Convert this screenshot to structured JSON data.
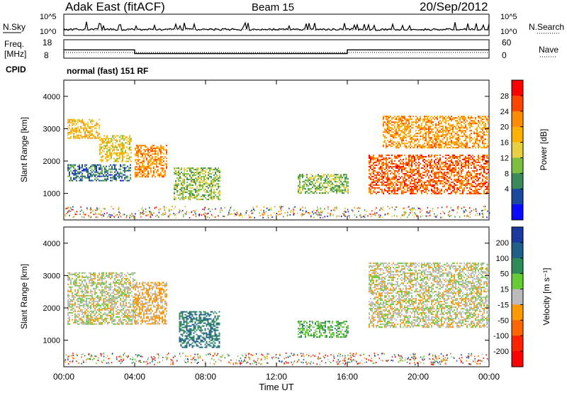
{
  "header": {
    "station": "Adak East (fitACF)",
    "beam": "Beam 15",
    "date": "20/Sep/2012"
  },
  "sky_panel": {
    "left_label": "N.Sky",
    "right_label": "N.Search",
    "ticks_left": [
      "10^5",
      "10^0"
    ],
    "ticks_right": [
      "10^5",
      "10^0"
    ]
  },
  "freq_panel": {
    "left_label_1": "Freq.",
    "left_label_2": "[MHz]",
    "right_label": "Nave",
    "ticks_left": [
      "18",
      "8"
    ],
    "ticks_right": [
      "60",
      "0"
    ]
  },
  "cpid": {
    "label": "CPID",
    "value": "normal (fast) 151 RF"
  },
  "power_panel": {
    "ylabel": "Slant Range [km]",
    "yticks": [
      "4000",
      "3000",
      "2000",
      "1000"
    ],
    "colorbar_label": "Power [dB]",
    "colorbar_ticks": [
      "28",
      "24",
      "20",
      "16",
      "12",
      "8",
      "4"
    ],
    "colorbar_colors": [
      "#ff0000",
      "#ff4400",
      "#ff8c00",
      "#ffb000",
      "#e8d040",
      "#7cc040",
      "#3a8a5a",
      "#1a4aa0",
      "#0a0aff"
    ]
  },
  "velocity_panel": {
    "ylabel": "Slant Range [km]",
    "yticks": [
      "4000",
      "3000",
      "2000",
      "1000"
    ],
    "colorbar_label": "Velocity [m s⁻¹]",
    "colorbar_ticks": [
      "200",
      "100",
      "50",
      "15",
      "-15",
      "-50",
      "-100",
      "-200"
    ],
    "colorbar_colors": [
      "#1a3aa0",
      "#1f5f8a",
      "#2e8b57",
      "#66cc33",
      "#bbbbbb",
      "#ff9900",
      "#ff6600",
      "#ff2200",
      "#ff0000"
    ]
  },
  "xaxis": {
    "label": "Time UT",
    "ticks": [
      "00:00",
      "04:00",
      "08:00",
      "12:00",
      "16:00",
      "20:00",
      "00:00"
    ]
  },
  "chart_data": {
    "type": "heatmap",
    "title": "Adak East (fitACF)  Beam 15  20/Sep/2012",
    "xlabel": "Time UT",
    "ylabel": "Slant Range [km]",
    "x_range_hours": [
      0,
      24
    ],
    "y_range_km": [
      180,
      4500
    ],
    "frequency_mhz": [
      {
        "from_hour": 0,
        "to_hour": 4,
        "value": 12.5
      },
      {
        "from_hour": 4,
        "to_hour": 16,
        "value": 10.5
      },
      {
        "from_hour": 16,
        "to_hour": 24,
        "value": 12.5
      }
    ],
    "power_regions": [
      {
        "t0": 0.2,
        "t1": 2.0,
        "r0": 2700,
        "r1": 3300,
        "db": 18
      },
      {
        "t0": 2.0,
        "t1": 3.8,
        "r0": 2000,
        "r1": 2800,
        "db": 16
      },
      {
        "t0": 0.2,
        "t1": 3.8,
        "r0": 1400,
        "r1": 1900,
        "db": 6
      },
      {
        "t0": 4.0,
        "t1": 5.8,
        "r0": 1500,
        "r1": 2500,
        "db": 22
      },
      {
        "t0": 6.2,
        "t1": 8.8,
        "r0": 800,
        "r1": 1800,
        "db": 12
      },
      {
        "t0": 13.2,
        "t1": 16.0,
        "r0": 1000,
        "r1": 1600,
        "db": 11
      },
      {
        "t0": 17.2,
        "t1": 24.0,
        "r0": 1000,
        "r1": 2200,
        "db": 25
      },
      {
        "t0": 18.0,
        "t1": 24.0,
        "r0": 2400,
        "r1": 3400,
        "db": 21
      }
    ],
    "velocity_regions": [
      {
        "t0": 0.2,
        "t1": 4.0,
        "r0": 1500,
        "r1": 3100,
        "v": 0
      },
      {
        "t0": 4.0,
        "t1": 5.8,
        "r0": 1500,
        "r1": 2800,
        "v": -20
      },
      {
        "t0": 6.5,
        "t1": 8.8,
        "r0": 800,
        "r1": 1900,
        "v": 100
      },
      {
        "t0": 13.2,
        "t1": 16.0,
        "r0": 1100,
        "r1": 1600,
        "v": 40
      },
      {
        "t0": 17.2,
        "t1": 24.0,
        "r0": 1400,
        "r1": 3400,
        "v": 0
      }
    ]
  }
}
